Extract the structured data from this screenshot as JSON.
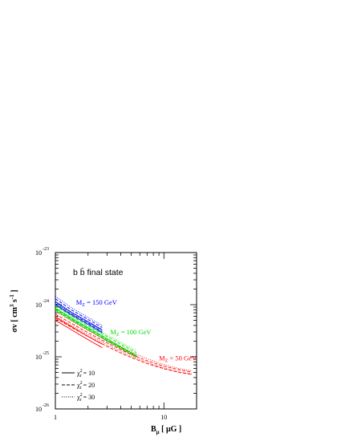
{
  "chart_data": {
    "type": "line",
    "title": "b b̄ final state",
    "xlabel": {
      "main": "B",
      "sub": "μ",
      "unit": "[ μG ]"
    },
    "ylabel": {
      "main": "σv [ cm",
      "sup1": "3",
      "mid": " s",
      "sup2": "-1",
      "end": " ]"
    },
    "xscale": "log",
    "yscale": "log",
    "xlim": [
      1,
      20
    ],
    "ylim": [
      1e-26,
      1e-23
    ],
    "x_ticks": [
      {
        "value": 1,
        "label": "1"
      },
      {
        "value": 10,
        "label": "10"
      }
    ],
    "y_ticks": [
      {
        "value": 1e-23,
        "base": "10",
        "exp": "-23"
      },
      {
        "value": 1e-24,
        "base": "10",
        "exp": "-24"
      },
      {
        "value": 1e-25,
        "base": "10",
        "exp": "-25"
      },
      {
        "value": 1e-26,
        "base": "10",
        "exp": "-26"
      }
    ],
    "colors": {
      "mz150": "#0000ff",
      "mz100": "#00dd00",
      "mz50": "#ff0000",
      "frame": "#000000"
    },
    "groups": [
      {
        "id": "mz150",
        "annotation": {
          "main": "M",
          "sub": "Z",
          "rest": " = 150 GeV"
        },
        "annotation_anchor": {
          "x": 1.55,
          "y": 1e-24
        },
        "curves": [
          {
            "chi": 10,
            "x": [
              1.0,
              1.4,
              2.0,
              2.7
            ],
            "y": [
              1.15e-24,
              7.2e-25,
              4.7e-25,
              3.3e-25
            ]
          },
          {
            "chi": 10,
            "x": [
              1.0,
              1.4,
              2.0,
              2.7
            ],
            "y": [
              1e-24,
              6.4e-25,
              4.2e-25,
              2.9e-25
            ]
          },
          {
            "chi": 20,
            "x": [
              1.0,
              1.4,
              2.0,
              2.7
            ],
            "y": [
              1.3e-24,
              8e-25,
              5.2e-25,
              3.65e-25
            ]
          },
          {
            "chi": 20,
            "x": [
              1.0,
              1.4,
              2.0,
              2.7
            ],
            "y": [
              1.05e-24,
              6.7e-25,
              4.4e-25,
              3.05e-25
            ]
          },
          {
            "chi": 30,
            "x": [
              1.0,
              1.4,
              2.0,
              2.7
            ],
            "y": [
              1.45e-24,
              8.8e-25,
              5.7e-25,
              4e-25
            ]
          },
          {
            "chi": 30,
            "x": [
              1.0,
              1.4,
              2.0,
              2.7
            ],
            "y": [
              1.1e-24,
              7e-25,
              4.6e-25,
              3.2e-25
            ]
          }
        ]
      },
      {
        "id": "mz100",
        "annotation": {
          "main": "M",
          "sub": "Z",
          "rest": " = 100 GeV"
        },
        "annotation_anchor": {
          "x": 3.2,
          "y": 2.7e-25
        },
        "curves": [
          {
            "chi": 10,
            "x": [
              1.0,
              1.5,
              2.2,
              3.0,
              4.0,
              5.6
            ],
            "y": [
              8.5e-25,
              5.1e-25,
              3.2e-25,
              2.2e-25,
              1.55e-25,
              1.05e-25
            ]
          },
          {
            "chi": 10,
            "x": [
              1.0,
              1.5,
              2.2,
              3.0,
              4.0,
              5.6
            ],
            "y": [
              7.8e-25,
              4.7e-25,
              2.95e-25,
              2e-25,
              1.45e-25,
              9.8e-26
            ]
          },
          {
            "chi": 20,
            "x": [
              1.0,
              1.5,
              2.2,
              3.0,
              4.0,
              5.6
            ],
            "y": [
              9.5e-25,
              5.6e-25,
              3.5e-25,
              2.45e-25,
              1.75e-25,
              1.2e-25
            ]
          },
          {
            "chi": 20,
            "x": [
              1.0,
              1.5,
              2.2,
              3.0,
              4.0,
              5.6
            ],
            "y": [
              8.2e-25,
              4.9e-25,
              3.1e-25,
              2.1e-25,
              1.5e-25,
              1.02e-25
            ]
          },
          {
            "chi": 30,
            "x": [
              1.0,
              1.5,
              2.2,
              3.0,
              4.0,
              5.6
            ],
            "y": [
              1.05e-24,
              6.1e-25,
              3.85e-25,
              2.65e-25,
              1.9e-25,
              1.3e-25
            ]
          },
          {
            "chi": 30,
            "x": [
              1.0,
              1.5,
              2.2,
              3.0,
              4.0,
              5.6
            ],
            "y": [
              8.8e-25,
              5.2e-25,
              3.3e-25,
              2.25e-25,
              1.6e-25,
              1.1e-25
            ]
          }
        ]
      },
      {
        "id": "mz50",
        "annotation": {
          "main": "M",
          "sub": "Z",
          "rest": " = 50 GeV"
        },
        "annotation_anchor": {
          "x": 9.0,
          "y": 8.6e-26
        },
        "curves": [
          {
            "chi": 10,
            "x": [
              1.0,
              1.3,
              1.7,
              2.2,
              2.7
            ],
            "y": [
              5.8e-25,
              4.2e-25,
              3e-25,
              2.2e-25,
              1.75e-25
            ]
          },
          {
            "chi": 10,
            "x": [
              1.0,
              1.3,
              1.7,
              2.2,
              2.7
            ],
            "y": [
              5e-25,
              3.65e-25,
              2.6e-25,
              1.9e-25,
              1.5e-25
            ]
          },
          {
            "chi": 20,
            "x": [
              1.0,
              1.4,
              2.0,
              3.0,
              4.5,
              7.0,
              10.0,
              14.0,
              18.0
            ],
            "y": [
              6.6e-25,
              4.4e-25,
              2.9e-25,
              1.85e-25,
              1.22e-25,
              8.4e-26,
              6.6e-26,
              5.6e-26,
              5.1e-26
            ]
          },
          {
            "chi": 20,
            "x": [
              1.0,
              1.4,
              2.0,
              3.0,
              4.5,
              7.0,
              10.0,
              14.0,
              18.0
            ],
            "y": [
              5.5e-25,
              3.7e-25,
              2.45e-25,
              1.58e-25,
              1.06e-25,
              7.4e-26,
              5.9e-26,
              5e-26,
              4.6e-26
            ]
          },
          {
            "chi": 30,
            "x": [
              1.0,
              1.4,
              2.0,
              3.0,
              4.5,
              7.0,
              10.0,
              14.0,
              18.0
            ],
            "y": [
              7.4e-25,
              4.9e-25,
              3.2e-25,
              2.05e-25,
              1.35e-25,
              9.2e-26,
              7.1e-26,
              5.9e-26,
              5.4e-26
            ]
          },
          {
            "chi": 30,
            "x": [
              1.0,
              1.4,
              2.0,
              3.0,
              4.5,
              7.0,
              10.0,
              14.0,
              18.0
            ],
            "y": [
              6e-25,
              4e-25,
              2.65e-25,
              1.7e-25,
              1.13e-25,
              7.8e-26,
              6.1e-26,
              5.1e-26,
              4.7e-26
            ]
          }
        ]
      }
    ],
    "legend": {
      "placement": "bottom-left",
      "entries": [
        {
          "style": "solid",
          "chi": 10,
          "sym": "χ",
          "sup": "2",
          "sub": "r",
          "rest": " = 10"
        },
        {
          "style": "dashed",
          "chi": 20,
          "sym": "χ",
          "sup": "2",
          "sub": "r",
          "rest": " = 20"
        },
        {
          "style": "dotted",
          "chi": 30,
          "sym": "χ",
          "sup": "2",
          "sub": "r",
          "rest": " = 30"
        }
      ]
    },
    "grid": false
  }
}
